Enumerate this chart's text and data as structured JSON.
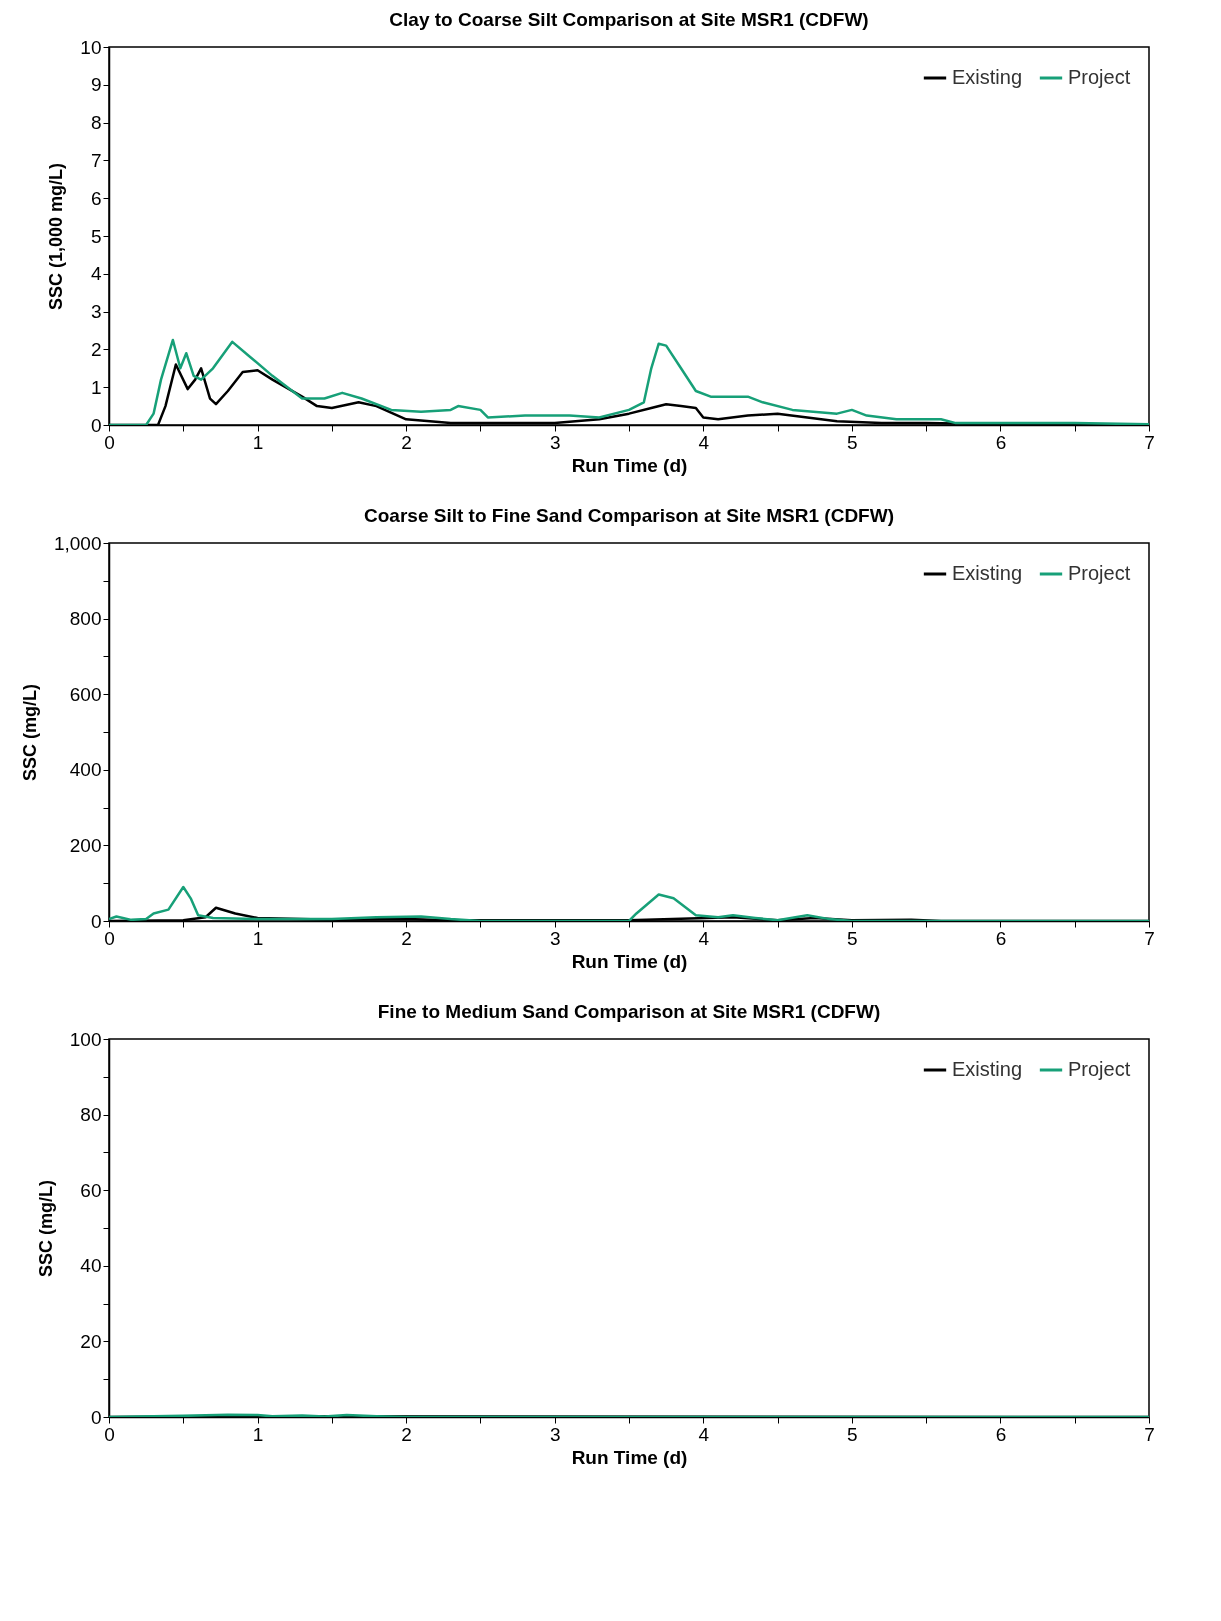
{
  "chart_data": [
    {
      "type": "line",
      "title": "Clay to Coarse Silt Comparison at Site MSR1 (CDFW)",
      "xlabel": "Run Time (d)",
      "ylabel": "SSC (1,000 mg/L)",
      "legend": "top right",
      "marker": "none",
      "line_style": "solid",
      "grid": false,
      "xlim": [
        0,
        7
      ],
      "xticks": [
        0,
        {
          "value": 0.5,
          "label": null
        },
        1,
        {
          "value": 1.5,
          "label": null
        },
        2,
        {
          "value": 2.5,
          "label": null
        },
        3,
        {
          "value": 3.5,
          "label": null
        },
        4,
        {
          "value": 4.5,
          "label": null
        },
        5,
        {
          "value": 5.5,
          "label": null
        },
        6,
        {
          "value": 6.5,
          "label": null
        },
        7
      ],
      "ylim": [
        0,
        10
      ],
      "yticks": [
        0,
        1,
        2,
        3,
        4,
        5,
        6,
        7,
        8,
        9,
        10
      ],
      "series": [
        {
          "name": "Existing",
          "color": "#000000",
          "x": [
            0,
            0.33,
            0.38,
            0.45,
            0.53,
            0.58,
            0.62,
            0.68,
            0.72,
            0.8,
            0.9,
            1.0,
            1.1,
            1.3,
            1.4,
            1.5,
            1.68,
            1.8,
            2.0,
            2.3,
            2.6,
            3.0,
            3.3,
            3.5,
            3.65,
            3.75,
            3.85,
            3.95,
            4.0,
            4.1,
            4.3,
            4.5,
            4.7,
            4.9,
            5.2,
            5.5,
            6,
            7
          ],
          "values": [
            0,
            0,
            0.5,
            1.6,
            0.95,
            1.2,
            1.5,
            0.7,
            0.55,
            0.9,
            1.4,
            1.45,
            1.2,
            0.75,
            0.5,
            0.45,
            0.6,
            0.5,
            0.15,
            0.05,
            0.05,
            0.05,
            0.15,
            0.3,
            0.45,
            0.55,
            0.5,
            0.45,
            0.2,
            0.15,
            0.25,
            0.3,
            0.2,
            0.1,
            0.05,
            0.05,
            0.02,
            0.02
          ]
        },
        {
          "name": "Project",
          "color": "#17a078",
          "x": [
            0,
            0.25,
            0.3,
            0.35,
            0.43,
            0.48,
            0.52,
            0.57,
            0.62,
            0.7,
            0.83,
            0.95,
            1.1,
            1.3,
            1.45,
            1.57,
            1.7,
            1.9,
            2.1,
            2.3,
            2.35,
            2.5,
            2.55,
            2.8,
            3.1,
            3.3,
            3.5,
            3.6,
            3.65,
            3.7,
            3.75,
            3.85,
            3.95,
            4.05,
            4.3,
            4.4,
            4.6,
            4.9,
            5.0,
            5.1,
            5.3,
            5.6,
            5.7,
            6.5,
            7
          ],
          "values": [
            0,
            0,
            0.3,
            1.2,
            2.25,
            1.5,
            1.9,
            1.3,
            1.2,
            1.5,
            2.2,
            1.8,
            1.3,
            0.7,
            0.7,
            0.85,
            0.7,
            0.4,
            0.35,
            0.4,
            0.5,
            0.4,
            0.2,
            0.25,
            0.25,
            0.2,
            0.4,
            0.6,
            1.5,
            2.15,
            2.1,
            1.5,
            0.9,
            0.75,
            0.75,
            0.6,
            0.4,
            0.3,
            0.4,
            0.25,
            0.15,
            0.15,
            0.05,
            0.05,
            0.02
          ]
        }
      ]
    },
    {
      "type": "line",
      "title": "Coarse Silt to Fine Sand Comparison at Site MSR1 (CDFW)",
      "xlabel": "Run Time (d)",
      "ylabel": "SSC (mg/L)",
      "legend": "top right",
      "marker": "none",
      "line_style": "solid",
      "grid": false,
      "xlim": [
        0,
        7
      ],
      "xticks": [
        0,
        {
          "value": 0.5,
          "label": null
        },
        1,
        {
          "value": 1.5,
          "label": null
        },
        2,
        {
          "value": 2.5,
          "label": null
        },
        3,
        {
          "value": 3.5,
          "label": null
        },
        4,
        {
          "value": 4.5,
          "label": null
        },
        5,
        {
          "value": 5.5,
          "label": null
        },
        6,
        {
          "value": 6.5,
          "label": null
        },
        7
      ],
      "ylim": [
        0,
        1000
      ],
      "yticks": [
        0,
        {
          "value": 100,
          "label": null
        },
        200,
        {
          "value": 300,
          "label": null
        },
        400,
        {
          "value": 500,
          "label": null
        },
        600,
        {
          "value": 700,
          "label": null
        },
        800,
        {
          "value": 900,
          "label": null
        },
        {
          "value": 1000,
          "label": "1,000"
        }
      ],
      "series": [
        {
          "name": "Existing",
          "color": "#000000",
          "x": [
            0,
            0.5,
            0.65,
            0.72,
            0.85,
            1,
            1.5,
            2,
            2.3,
            3.5,
            4.2,
            4.5,
            4.75,
            5,
            5.4,
            5.6,
            7
          ],
          "values": [
            0,
            2,
            10,
            35,
            20,
            8,
            3,
            5,
            2,
            2,
            10,
            2,
            8,
            2,
            3,
            0,
            0
          ]
        },
        {
          "name": "Project",
          "color": "#17a078",
          "x": [
            0,
            0.05,
            0.15,
            0.25,
            0.3,
            0.4,
            0.5,
            0.55,
            0.6,
            0.7,
            1,
            1.5,
            1.8,
            2.1,
            2.3,
            2.5,
            3.5,
            3.55,
            3.7,
            3.8,
            3.95,
            4.1,
            4.2,
            4.35,
            4.5,
            4.7,
            4.85,
            5.0,
            7
          ],
          "values": [
            5,
            12,
            3,
            5,
            20,
            30,
            90,
            60,
            15,
            8,
            5,
            5,
            10,
            12,
            5,
            0,
            0,
            20,
            70,
            60,
            15,
            10,
            15,
            8,
            2,
            15,
            5,
            0,
            0
          ]
        }
      ]
    },
    {
      "type": "line",
      "title": "Fine to Medium Sand Comparison at Site MSR1 (CDFW)",
      "xlabel": "Run Time (d)",
      "ylabel": "SSC (mg/L)",
      "legend": "top right",
      "marker": "none",
      "line_style": "solid",
      "grid": false,
      "xlim": [
        0,
        7
      ],
      "xticks": [
        0,
        {
          "value": 0.5,
          "label": null
        },
        1,
        {
          "value": 1.5,
          "label": null
        },
        2,
        {
          "value": 2.5,
          "label": null
        },
        3,
        {
          "value": 3.5,
          "label": null
        },
        4,
        {
          "value": 4.5,
          "label": null
        },
        5,
        {
          "value": 5.5,
          "label": null
        },
        6,
        {
          "value": 6.5,
          "label": null
        },
        7
      ],
      "ylim": [
        0,
        100
      ],
      "yticks": [
        0,
        {
          "value": 10,
          "label": null
        },
        20,
        {
          "value": 30,
          "label": null
        },
        40,
        {
          "value": 50,
          "label": null
        },
        60,
        {
          "value": 70,
          "label": null
        },
        80,
        {
          "value": 90,
          "label": null
        },
        100
      ],
      "series": [
        {
          "name": "Existing",
          "color": "#000000",
          "x": [
            0,
            1,
            7
          ],
          "values": [
            0,
            0.2,
            0
          ]
        },
        {
          "name": "Project",
          "color": "#17a078",
          "x": [
            0,
            0.5,
            0.8,
            1.0,
            1.1,
            1.3,
            1.45,
            1.6,
            1.8,
            2,
            7
          ],
          "values": [
            0,
            0.3,
            0.6,
            0.5,
            0.2,
            0.4,
            0.1,
            0.5,
            0.2,
            0,
            0
          ]
        }
      ]
    }
  ]
}
